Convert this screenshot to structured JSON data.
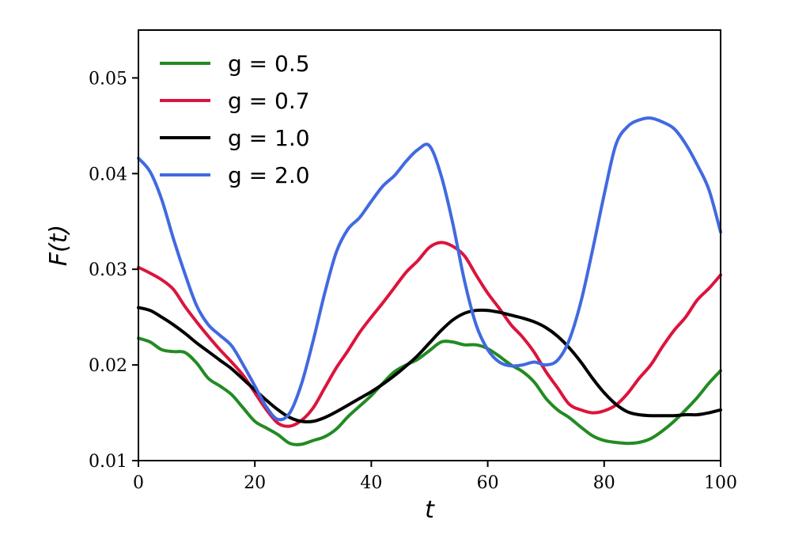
{
  "chart_data": {
    "type": "line",
    "xlabel": "t",
    "ylabel": "F(t)",
    "xlim": [
      0,
      100
    ],
    "ylim": [
      0.01,
      0.055
    ],
    "xticks": [
      0,
      20,
      40,
      60,
      80,
      100
    ],
    "yticks": [
      0.01,
      0.02,
      0.03,
      0.04,
      0.05
    ],
    "xtick_labels": [
      "0",
      "20",
      "40",
      "60",
      "80",
      "100"
    ],
    "ytick_labels": [
      "0.01",
      "0.02",
      "0.03",
      "0.04",
      "0.05"
    ],
    "grid": false,
    "legend_position": "top-left",
    "series": [
      {
        "name": "g = 0.5",
        "color": "#228B22",
        "x": [
          0,
          2,
          4,
          6,
          8,
          10,
          12,
          14,
          16,
          18,
          20,
          22,
          24,
          26,
          28,
          30,
          32,
          34,
          36,
          38,
          40,
          42,
          44,
          46,
          48,
          50,
          52,
          54,
          56,
          58,
          60,
          62,
          64,
          66,
          68,
          70,
          72,
          74,
          76,
          78,
          80,
          82,
          84,
          86,
          88,
          90,
          92,
          94,
          96,
          98,
          100
        ],
        "values": [
          0.0228,
          0.0224,
          0.0216,
          0.0214,
          0.0213,
          0.0202,
          0.0186,
          0.0178,
          0.0169,
          0.0155,
          0.0141,
          0.0134,
          0.0127,
          0.0118,
          0.0117,
          0.0121,
          0.0125,
          0.0133,
          0.0146,
          0.0157,
          0.0168,
          0.0181,
          0.0193,
          0.02,
          0.0206,
          0.0215,
          0.0224,
          0.0224,
          0.0221,
          0.0221,
          0.0217,
          0.0209,
          0.02,
          0.0193,
          0.0182,
          0.0165,
          0.0153,
          0.0145,
          0.0135,
          0.0126,
          0.0121,
          0.0119,
          0.0118,
          0.0119,
          0.0123,
          0.0131,
          0.0141,
          0.0153,
          0.0166,
          0.0181,
          0.0194
        ]
      },
      {
        "name": "g = 0.7",
        "color": "#DC143C",
        "x": [
          0,
          2,
          4,
          6,
          8,
          10,
          12,
          14,
          16,
          18,
          20,
          22,
          24,
          26,
          28,
          30,
          32,
          34,
          36,
          38,
          40,
          42,
          44,
          46,
          48,
          50,
          52,
          54,
          56,
          58,
          60,
          62,
          64,
          66,
          68,
          70,
          72,
          74,
          76,
          78,
          80,
          82,
          84,
          86,
          88,
          90,
          92,
          94,
          96,
          98,
          100
        ],
        "values": [
          0.0302,
          0.0296,
          0.0289,
          0.0279,
          0.0261,
          0.0245,
          0.023,
          0.0216,
          0.0203,
          0.0189,
          0.0171,
          0.0153,
          0.0139,
          0.0136,
          0.0142,
          0.0155,
          0.0176,
          0.0197,
          0.0215,
          0.0234,
          0.025,
          0.0265,
          0.0281,
          0.0297,
          0.0309,
          0.0323,
          0.0328,
          0.0324,
          0.0314,
          0.0294,
          0.0275,
          0.0259,
          0.0242,
          0.0229,
          0.0213,
          0.0193,
          0.0176,
          0.0159,
          0.0153,
          0.015,
          0.0152,
          0.0158,
          0.017,
          0.0186,
          0.02,
          0.0219,
          0.0236,
          0.025,
          0.0268,
          0.028,
          0.0294
        ]
      },
      {
        "name": "g = 1.0",
        "color": "#000000",
        "x": [
          0,
          2,
          4,
          6,
          8,
          10,
          12,
          14,
          16,
          18,
          20,
          22,
          24,
          26,
          28,
          30,
          32,
          34,
          36,
          38,
          40,
          42,
          44,
          46,
          48,
          50,
          52,
          54,
          56,
          58,
          60,
          62,
          64,
          66,
          68,
          70,
          72,
          74,
          76,
          78,
          80,
          82,
          84,
          86,
          88,
          90,
          92,
          94,
          96,
          98,
          100
        ],
        "values": [
          0.026,
          0.0257,
          0.025,
          0.0242,
          0.0233,
          0.0223,
          0.0214,
          0.0205,
          0.0196,
          0.0185,
          0.0174,
          0.0163,
          0.0153,
          0.0145,
          0.0141,
          0.0141,
          0.0145,
          0.0151,
          0.0158,
          0.0165,
          0.0172,
          0.018,
          0.0189,
          0.0199,
          0.021,
          0.0223,
          0.0236,
          0.0247,
          0.0254,
          0.0257,
          0.0257,
          0.0255,
          0.0252,
          0.0249,
          0.0245,
          0.0239,
          0.023,
          0.0218,
          0.0203,
          0.0186,
          0.0171,
          0.0159,
          0.0151,
          0.0148,
          0.0147,
          0.0147,
          0.0147,
          0.0148,
          0.0148,
          0.015,
          0.0153
        ]
      },
      {
        "name": "g = 2.0",
        "color": "#4169E1",
        "x": [
          0,
          2,
          4,
          6,
          8,
          10,
          12,
          14,
          16,
          18,
          20,
          22,
          24,
          26,
          28,
          30,
          32,
          34,
          36,
          38,
          40,
          42,
          44,
          46,
          48,
          50,
          52,
          54,
          56,
          58,
          60,
          62,
          64,
          66,
          68,
          70,
          72,
          74,
          76,
          78,
          80,
          82,
          84,
          86,
          88,
          90,
          92,
          94,
          96,
          98,
          100
        ],
        "values": [
          0.0416,
          0.0402,
          0.0373,
          0.0332,
          0.0295,
          0.0262,
          0.0242,
          0.0231,
          0.022,
          0.02,
          0.0178,
          0.0156,
          0.0143,
          0.015,
          0.018,
          0.0225,
          0.0275,
          0.0318,
          0.0342,
          0.0354,
          0.0371,
          0.0387,
          0.0398,
          0.0413,
          0.0425,
          0.0429,
          0.0398,
          0.0348,
          0.0288,
          0.0242,
          0.0216,
          0.0203,
          0.0199,
          0.02,
          0.0203,
          0.02,
          0.0205,
          0.0226,
          0.0266,
          0.032,
          0.0378,
          0.043,
          0.0449,
          0.0456,
          0.0458,
          0.0454,
          0.0447,
          0.0431,
          0.0409,
          0.0383,
          0.0339
        ]
      }
    ]
  }
}
